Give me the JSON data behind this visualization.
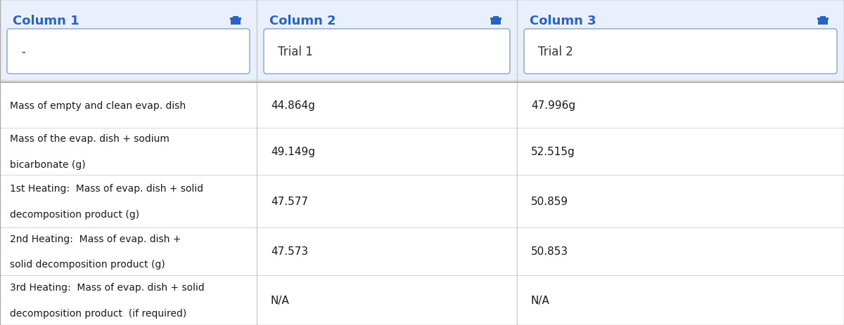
{
  "col_headers": [
    "Column 1",
    "Column 2",
    "Column 3"
  ],
  "col_subtitles": [
    "-",
    "Trial 1",
    "Trial 2"
  ],
  "row_labels": [
    "Mass of empty and clean evap. dish",
    "Mass of the evap. dish + sodium\n\nbicarbonate (g)",
    "1st Heating:  Mass of evap. dish + solid\n\ndecomposition product (g)",
    "2nd Heating:  Mass of evap. dish +\n\nsolid decomposition product (g)",
    "3rd Heating:  Mass of evap. dish + solid\n\ndecomposition product  (if required)"
  ],
  "col2_values": [
    "44.864g",
    "49.149g",
    "47.577",
    "47.573",
    "N/A"
  ],
  "col3_values": [
    "47.996g",
    "52.515g",
    "50.859",
    "50.853",
    "N/A"
  ],
  "header_bg": "#eaf0fb",
  "col_header_color": "#2563c4",
  "body_bg": "#ffffff",
  "border_color": "#cccccc",
  "input_box_border": "#9ab0d0",
  "trash_color": "#2563c4",
  "figsize": [
    12.0,
    4.64
  ],
  "dpi": 100
}
